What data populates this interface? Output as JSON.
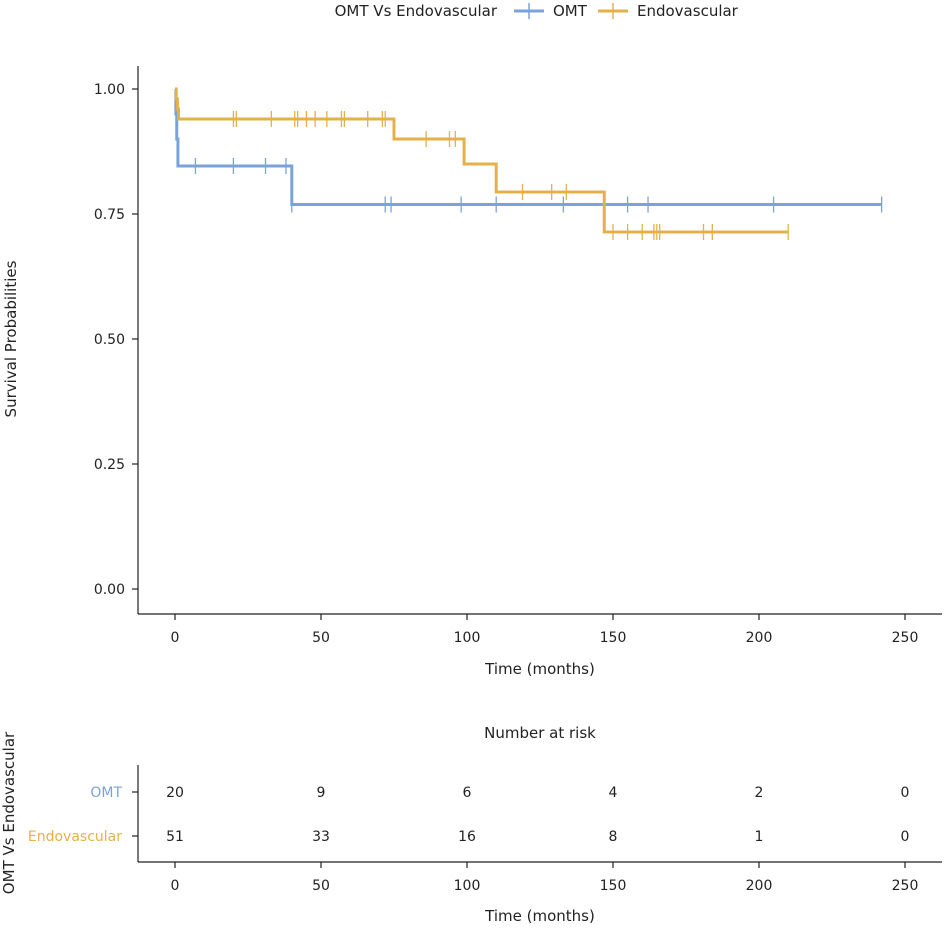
{
  "chart_data": {
    "type": "kaplan-meier",
    "legend": {
      "title": "OMT Vs Endovascular",
      "position": "top",
      "entries": [
        {
          "name": "OMT",
          "color": "#7aa3dc"
        },
        {
          "name": "Endovascular",
          "color": "#e5b04a"
        }
      ]
    },
    "xlabel": "Time (months)",
    "ylabel": "Survival Probabilities",
    "xlim": [
      0,
      250
    ],
    "ylim": [
      0,
      1
    ],
    "x_ticks": [
      0,
      50,
      100,
      150,
      200,
      250
    ],
    "y_ticks": [
      0,
      0.25,
      0.5,
      0.75,
      1.0
    ],
    "y_tick_labels": [
      "0.00",
      "0.25",
      "0.50",
      "0.75",
      "1.00"
    ],
    "series": [
      {
        "name": "OMT",
        "color": "#7aa3dc",
        "steps": [
          [
            0,
            1.0
          ],
          [
            0.3,
            0.95
          ],
          [
            0.6,
            0.9
          ],
          [
            1,
            0.846
          ],
          [
            40,
            0.769
          ]
        ],
        "end_time": 242,
        "censor_times": [
          7,
          20,
          31,
          38,
          40,
          72,
          74,
          98,
          110,
          133,
          155,
          162,
          205,
          242
        ]
      },
      {
        "name": "Endovascular",
        "color": "#e5b04a",
        "steps": [
          [
            0,
            1.0
          ],
          [
            0.4,
            0.98
          ],
          [
            0.8,
            0.96
          ],
          [
            1.2,
            0.94
          ],
          [
            75,
            0.9
          ],
          [
            99,
            0.85
          ],
          [
            110,
            0.794
          ],
          [
            147,
            0.714
          ]
        ],
        "end_time": 210,
        "censor_times": [
          1,
          20,
          21,
          33,
          41,
          42,
          45,
          48,
          52,
          57,
          58,
          66,
          71,
          72,
          86,
          94,
          96,
          119,
          129,
          134,
          150,
          155,
          160,
          164,
          165,
          166,
          181,
          184,
          210
        ]
      }
    ],
    "risk_table": {
      "title": "Number at risk",
      "ylabel": "OMT Vs Endovascular",
      "xlabel": "Time (months)",
      "times": [
        0,
        50,
        100,
        150,
        200,
        250
      ],
      "rows": [
        {
          "name": "OMT",
          "color": "#7aa3dc",
          "values": [
            "20",
            "9",
            "6",
            "4",
            "2",
            "0"
          ]
        },
        {
          "name": "Endovascular",
          "color": "#e5b04a",
          "values": [
            "51",
            "33",
            "16",
            "8",
            "1",
            "0"
          ]
        }
      ]
    }
  }
}
